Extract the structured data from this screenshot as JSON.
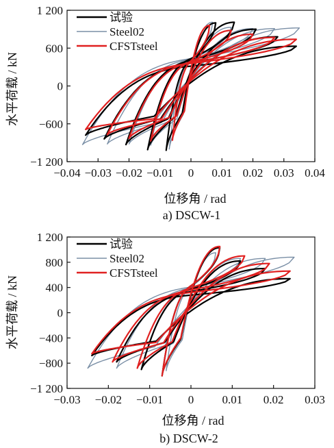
{
  "chart_data": [
    {
      "type": "line",
      "panel_caption": "a)  DSCW-1",
      "xlabel": "位移角 / rad",
      "ylabel": "水平荷载 / kN",
      "xlim": [
        -0.04,
        0.04
      ],
      "ylim": [
        -1200,
        1200
      ],
      "xticks": [
        -0.04,
        -0.03,
        -0.02,
        -0.01,
        0,
        0.01,
        0.02,
        0.03,
        0.04
      ],
      "xtick_labels": [
        "−0.04",
        "−0.03",
        "−0.02",
        "−0.01",
        "0",
        "0.01",
        "0.02",
        "0.03",
        "0.04"
      ],
      "yticks": [
        -1200,
        -600,
        0,
        600,
        1200
      ],
      "ytick_labels": [
        "−1 200",
        "−600",
        "0",
        "600",
        "1 200"
      ],
      "grid": false,
      "legend_position": "top-left",
      "series": [
        {
          "name": "试验",
          "color": "#000000",
          "loops": [
            {
              "d": 0.008,
              "p": 1000,
              "n": -1020,
              "r": 430
            },
            {
              "d": 0.014,
              "p": 1010,
              "n": -1010,
              "r": 480
            },
            {
              "d": 0.021,
              "p": 900,
              "n": -930,
              "r": 520
            },
            {
              "d": 0.028,
              "p": 780,
              "n": -840,
              "r": 520
            },
            {
              "d": 0.034,
              "p": 630,
              "n": -780,
              "r": 480
            }
          ]
        },
        {
          "name": "Steel02",
          "color": "#7a8fa6",
          "loops": [
            {
              "d": 0.007,
              "p": 1010,
              "n": -1000,
              "r": 450
            },
            {
              "d": 0.013,
              "p": 930,
              "n": -940,
              "r": 520
            },
            {
              "d": 0.02,
              "p": 910,
              "n": -920,
              "r": 560
            },
            {
              "d": 0.027,
              "p": 910,
              "n": -920,
              "r": 580
            },
            {
              "d": 0.035,
              "p": 920,
              "n": -930,
              "r": 600
            }
          ]
        },
        {
          "name": "CFSTsteel",
          "color": "#e02020",
          "loops": [
            {
              "d": 0.006,
              "p": 960,
              "n": -860,
              "r": 400
            },
            {
              "d": 0.013,
              "p": 880,
              "n": -870,
              "r": 470
            },
            {
              "d": 0.02,
              "p": 820,
              "n": -830,
              "r": 500
            },
            {
              "d": 0.027,
              "p": 770,
              "n": -770,
              "r": 520
            },
            {
              "d": 0.034,
              "p": 740,
              "n": -690,
              "r": 520
            }
          ]
        }
      ]
    },
    {
      "type": "line",
      "panel_caption": "b)  DSCW-2",
      "xlabel": "位移角 / rad",
      "ylabel": "水平荷载 / kN",
      "xlim": [
        -0.03,
        0.03
      ],
      "ylim": [
        -1200,
        1200
      ],
      "xticks": [
        -0.03,
        -0.02,
        -0.01,
        0,
        0.01,
        0.02,
        0.03
      ],
      "xtick_labels": [
        "−0.03",
        "−0.02",
        "−0.01",
        "0",
        "0.01",
        "0.02",
        "0.03"
      ],
      "yticks": [
        -1200,
        -800,
        -400,
        0,
        400,
        800,
        1200
      ],
      "ytick_labels": [
        "−1 200",
        "−800",
        "−400",
        "0",
        "400",
        "800",
        "1 200"
      ],
      "grid": false,
      "legend_position": "top-left",
      "series": [
        {
          "name": "试验",
          "color": "#000000",
          "loops": [
            {
              "d": 0.007,
              "p": 1030,
              "n": -1000,
              "r": 420
            },
            {
              "d": 0.012,
              "p": 820,
              "n": -900,
              "r": 460
            },
            {
              "d": 0.018,
              "p": 700,
              "n": -780,
              "r": 470
            },
            {
              "d": 0.024,
              "p": 540,
              "n": -680,
              "r": 450
            }
          ]
        },
        {
          "name": "Steel02",
          "color": "#7a8fa6",
          "loops": [
            {
              "d": 0.006,
              "p": 950,
              "n": -920,
              "r": 430
            },
            {
              "d": 0.012,
              "p": 860,
              "n": -880,
              "r": 480
            },
            {
              "d": 0.018,
              "p": 860,
              "n": -880,
              "r": 520
            },
            {
              "d": 0.025,
              "p": 880,
              "n": -880,
              "r": 540
            }
          ]
        },
        {
          "name": "CFSTsteel",
          "color": "#e02020",
          "loops": [
            {
              "d": 0.007,
              "p": 1050,
              "n": -1000,
              "r": 400
            },
            {
              "d": 0.013,
              "p": 900,
              "n": -880,
              "r": 460
            },
            {
              "d": 0.019,
              "p": 780,
              "n": -780,
              "r": 480
            },
            {
              "d": 0.024,
              "p": 660,
              "n": -650,
              "r": 470
            }
          ]
        }
      ]
    }
  ]
}
